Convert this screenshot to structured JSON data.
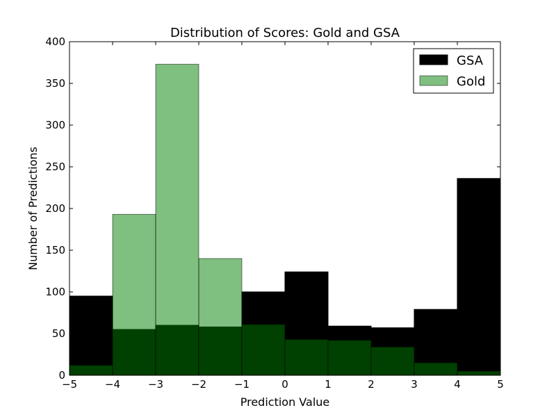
{
  "chart_data": {
    "type": "bar",
    "title": "Distribution of Scores: Gold and GSA",
    "xlabel": "Prediction Value",
    "ylabel": "Number of Predictions",
    "xlim": [
      -5,
      5
    ],
    "ylim": [
      0,
      400
    ],
    "bins": [
      [
        -5,
        -4
      ],
      [
        -4,
        -3
      ],
      [
        -3,
        -2
      ],
      [
        -2,
        -1
      ],
      [
        -1,
        0
      ],
      [
        0,
        1
      ],
      [
        1,
        2
      ],
      [
        2,
        3
      ],
      [
        3,
        4
      ],
      [
        4,
        5
      ]
    ],
    "x_ticks": [
      "−5",
      "−4",
      "−3",
      "−2",
      "−1",
      "0",
      "1",
      "2",
      "3",
      "4",
      "5"
    ],
    "y_ticks": [
      "0",
      "50",
      "100",
      "150",
      "200",
      "250",
      "300",
      "350",
      "400"
    ],
    "legend_position": "top-right",
    "grid": false,
    "series": [
      {
        "name": "GSA",
        "color": "#000000",
        "values": [
          95,
          55,
          60,
          58,
          100,
          124,
          59,
          57,
          79,
          236
        ]
      },
      {
        "name": "Gold",
        "color": "#008000",
        "alpha": 0.5,
        "values": [
          12,
          193,
          373,
          140,
          61,
          43,
          42,
          34,
          15,
          5
        ]
      }
    ]
  }
}
